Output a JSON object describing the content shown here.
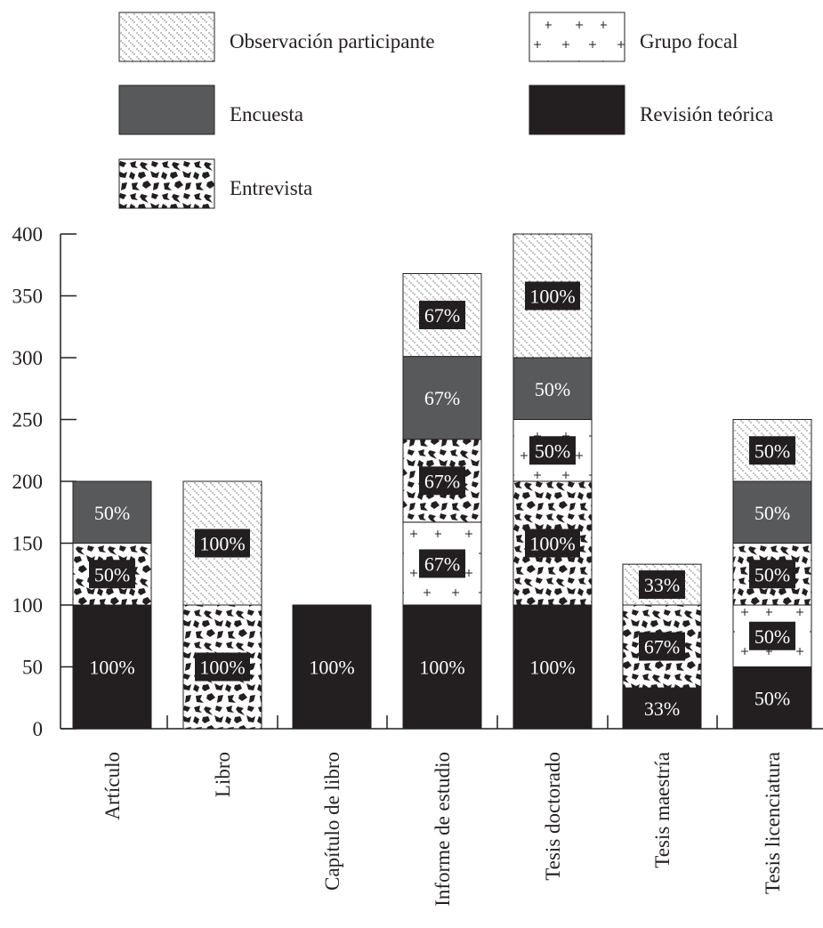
{
  "chart_data": {
    "type": "bar",
    "stacked": true,
    "title": "",
    "xlabel": "",
    "ylabel": "",
    "ylim": [
      0,
      400
    ],
    "yticks": [
      0,
      50,
      100,
      150,
      200,
      250,
      300,
      350,
      400
    ],
    "grid": false,
    "legend_position": "top",
    "categories": [
      "Artículo",
      "Libro",
      "Capítulo de libro",
      "Informe de estudio",
      "Tesis doctorado",
      "Tesis maestría",
      "Tesis licenciatura"
    ],
    "series": [
      {
        "name": "Revisión teórica",
        "pattern": "solid-black",
        "values": [
          100,
          0,
          100,
          100,
          100,
          33,
          50
        ],
        "labels": [
          "100%",
          "",
          "100%",
          "100%",
          "100%",
          "33%",
          "50%"
        ]
      },
      {
        "name": "Entrevista",
        "pattern": "black-blotches",
        "values": [
          50,
          100,
          0,
          0,
          100,
          67,
          0
        ],
        "labels": [
          "50%",
          "100%",
          "",
          "",
          "100%",
          "67%",
          ""
        ]
      },
      {
        "name": "Grupo focal",
        "pattern": "plus-signs",
        "values": [
          0,
          0,
          0,
          67,
          50,
          0,
          50
        ],
        "labels": [
          "",
          "",
          "",
          "67%",
          "50%",
          "",
          "50%"
        ]
      },
      {
        "name": "Entrevista",
        "pattern": "black-blotches",
        "values": [
          0,
          0,
          0,
          67,
          0,
          0,
          50
        ],
        "labels": [
          "",
          "",
          "",
          "67%",
          "",
          "",
          "50%"
        ]
      },
      {
        "name": "Encuesta",
        "pattern": "solid-gray",
        "values": [
          50,
          0,
          0,
          67,
          50,
          0,
          50
        ],
        "labels": [
          "50%",
          "",
          "",
          "67%",
          "50%",
          "",
          "50%"
        ]
      },
      {
        "name": "Observación participante",
        "pattern": "dotted-diagonal",
        "values": [
          0,
          100,
          0,
          67,
          100,
          33,
          50
        ],
        "labels": [
          "",
          "100%",
          "",
          "67%",
          "100%",
          "33%",
          "50%"
        ]
      }
    ],
    "legend": [
      {
        "name": "Observación participante",
        "pattern": "dotted-diagonal"
      },
      {
        "name": "Grupo focal",
        "pattern": "plus-signs"
      },
      {
        "name": "Encuesta",
        "pattern": "solid-gray"
      },
      {
        "name": "Revisión teórica",
        "pattern": "solid-black"
      },
      {
        "name": "Entrevista",
        "pattern": "black-blotches"
      }
    ],
    "colors": {
      "black": "#231f20",
      "gray": "#58595b",
      "white": "#ffffff"
    }
  }
}
